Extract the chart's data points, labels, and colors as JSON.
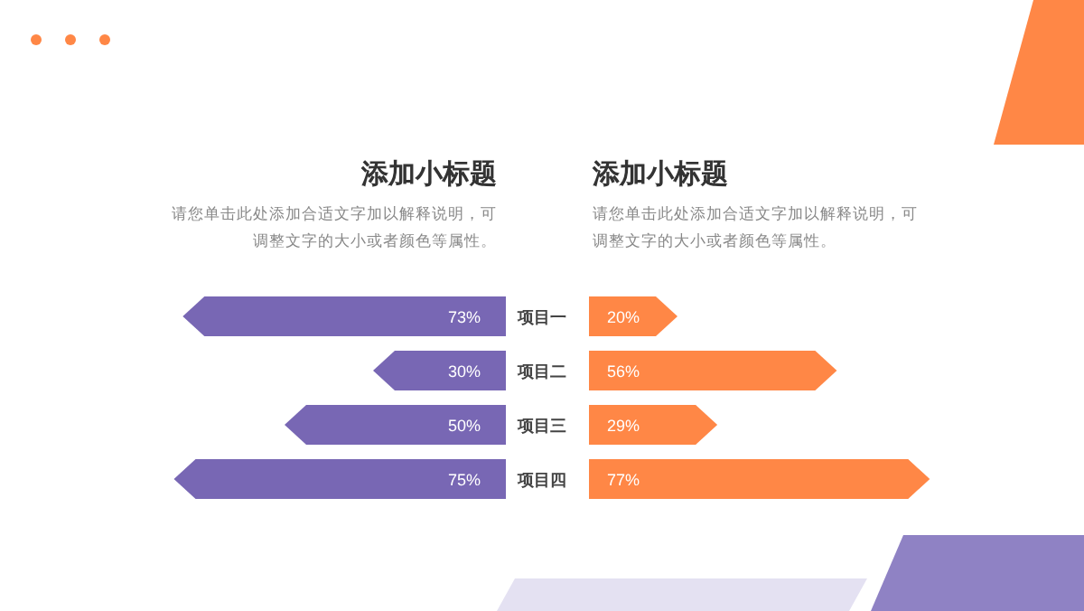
{
  "chart_data": [
    {
      "type": "bar",
      "orientation": "horizontal",
      "title": "添加小标题",
      "subtitle": "请您单击此处添加合适文字加以解释说明，可调整文字的大小或者颜色等属性。",
      "categories": [
        "项目一",
        "项目二",
        "项目三",
        "项目四"
      ],
      "values": [
        73,
        30,
        50,
        75
      ],
      "value_labels": [
        "73%",
        "30%",
        "50%",
        "75%"
      ],
      "color": "#7867b4",
      "tick_labels": "y"
    },
    {
      "type": "bar",
      "orientation": "horizontal",
      "title": "添加小标题",
      "subtitle": "请您单击此处添加合适文字加以解释说明，可调整文字的大小或者颜色等属性。",
      "categories": [
        null,
        null,
        null,
        null
      ],
      "values": [
        20,
        56,
        29,
        77
      ],
      "value_labels": [
        "20%",
        "56%",
        "29%",
        "77%"
      ],
      "color": "#ff8746",
      "tick_labels": false
    }
  ]
}
